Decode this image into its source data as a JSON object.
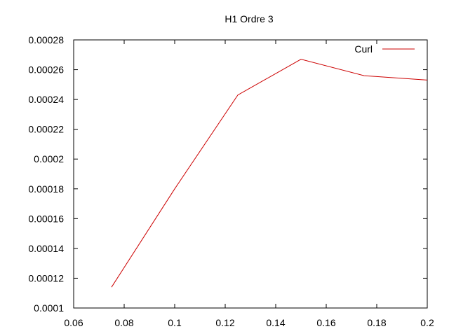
{
  "chart_data": {
    "type": "line",
    "title": "H1 Ordre 3",
    "xlabel": "",
    "ylabel": "",
    "xlim": [
      0.06,
      0.2
    ],
    "ylim": [
      0.0001,
      0.00028
    ],
    "grid": false,
    "legend_position": "top-right",
    "x_ticks": [
      {
        "value": 0.06,
        "label": "0.06"
      },
      {
        "value": 0.08,
        "label": "0.08"
      },
      {
        "value": 0.1,
        "label": "0.1"
      },
      {
        "value": 0.12,
        "label": "0.12"
      },
      {
        "value": 0.14,
        "label": "0.14"
      },
      {
        "value": 0.16,
        "label": "0.16"
      },
      {
        "value": 0.18,
        "label": "0.18"
      },
      {
        "value": 0.2,
        "label": "0.2"
      }
    ],
    "y_ticks": [
      {
        "value": 0.0001,
        "label": "0.0001"
      },
      {
        "value": 0.00012,
        "label": "0.00012"
      },
      {
        "value": 0.00014,
        "label": "0.00014"
      },
      {
        "value": 0.00016,
        "label": "0.00016"
      },
      {
        "value": 0.00018,
        "label": "0.00018"
      },
      {
        "value": 0.0002,
        "label": "0.0002"
      },
      {
        "value": 0.00022,
        "label": "0.00022"
      },
      {
        "value": 0.00024,
        "label": "0.00024"
      },
      {
        "value": 0.00026,
        "label": "0.00026"
      },
      {
        "value": 0.00028,
        "label": "0.00028"
      }
    ],
    "series": [
      {
        "name": "Curl",
        "color": "#cc0000",
        "x": [
          0.075,
          0.1,
          0.125,
          0.15,
          0.175,
          0.2
        ],
        "y": [
          0.000114,
          0.00018,
          0.000243,
          0.000267,
          0.000256,
          0.000253
        ]
      }
    ]
  }
}
